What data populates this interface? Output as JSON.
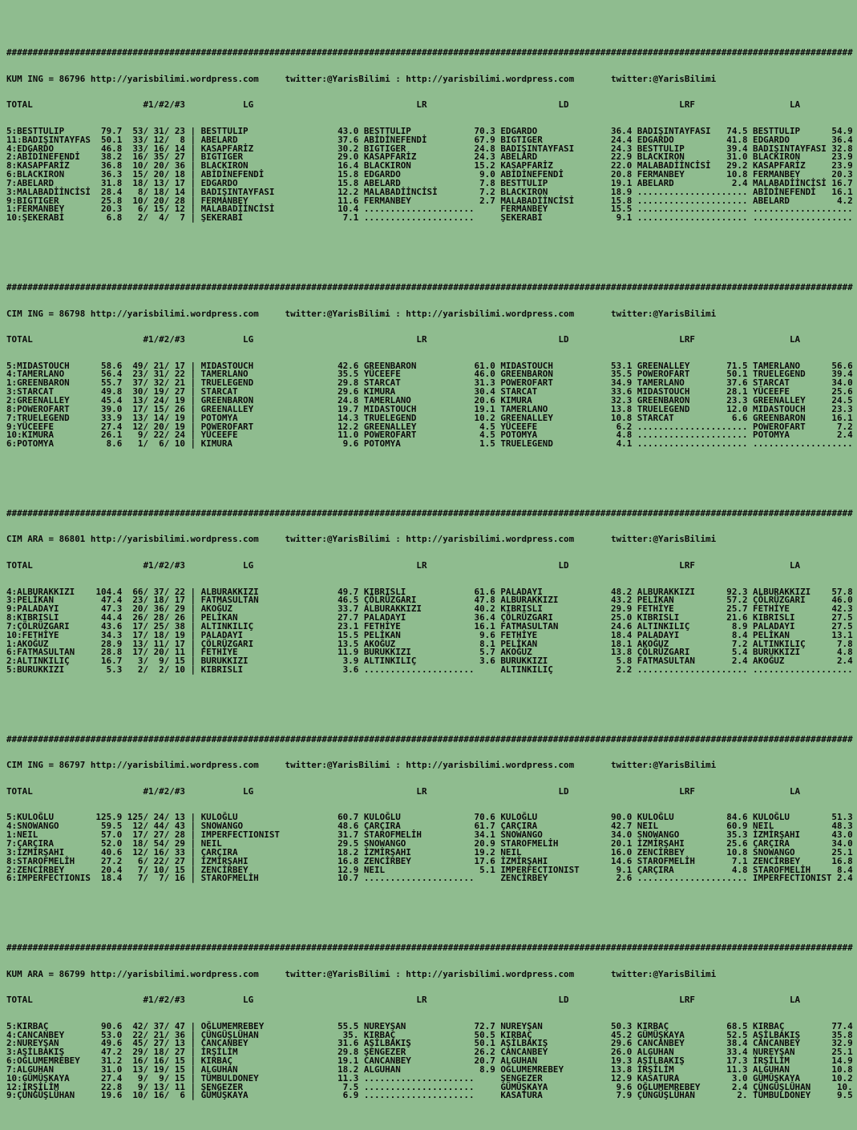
{
  "page": {
    "background_color": "#8fbc8f",
    "text_color": "#0a0a0a",
    "site_url": "http://yarisbilimi.wordpress.com",
    "twitter_handle": "twitter:@YarisBilimi"
  },
  "hash_line": "#################################################################################################################################################################",
  "columns_line": "TOTAL                     #1/#2/#3           LG                               LR                         LD                     LRF                  LA",
  "column_headers": [
    "TOTAL",
    "#1/#2/#3",
    "LG",
    "LR",
    "LD",
    "LRF",
    "LA"
  ],
  "sections": [
    {
      "name": "KUM ING",
      "code": "86796",
      "title_line": "KUM ING = 86796 http://yarisbilimi.wordpress.com     twitter:@YarisBilimi : http://yarisbilimi.wordpress.com       twitter:@YarisBilimi",
      "rows": [
        "5:BESTTULIP       79.7  53/ 31/ 23 | BESTTULIP                 43.0 BESTTULIP            70.3 EDGARDO              36.4 BADIŞINTAYFASI   74.5 BESTTULIP      54.9",
        "11:BADIŞINTAYFAS  50.1  33/ 12/  8 | ABELARD                   37.6 ABİDİNEFENDİ         67.9 BIGTIGER             24.4 EDGARDO          41.8 EDGARDO        36.4",
        "4:EDGARDO         46.8  33/ 16/ 14 | KASAPFARİZ                30.2 BIGTIGER             24.8 BADIŞINTAYFASI       24.3 BESTTULIP        39.4 BADIŞINTAYFASI 32.8",
        "2:ABİDİNEFENDİ    38.2  16/ 35/ 27 | BIGTIGER                  29.0 KASAPFARİZ           24.3 ABELARD              22.9 BLACKIRON        31.0 BLACKIRON      23.9",
        "8:KASAPFARİZ      36.8  10/ 20/ 36 | BLACKIRON                 16.4 BLACKIRON            15.2 KASAPFARİZ           22.0 MALABADİİNCİSİ   29.2 KASAPFARİZ     23.9",
        "6:BLACKIRON       36.3  15/ 20/ 18 | ABİDİNEFENDİ              15.8 EDGARDO               9.0 ABİDİNEFENDİ         20.8 FERMANBEY        10.8 FERMANBEY      20.3",
        "7:ABELARD         31.8  18/ 13/ 17 | EDGARDO                   15.8 ABELARD               7.8 BESTTULIP            19.1 ABELARD           2.4 MALABADİİNCİSİ 16.7",
        "3:MALABADİİNCİSİ  28.4   8/ 18/ 14 | BADIŞINTAYFASI            12.2 MALABADİİNCİSİ        7.2 BLACKIRON            18.9 ..................... ABİDİNEFENDİ   16.1",
        "9:BIGTIGER        25.8  10/ 20/ 28 | FERMANBEY                 11.6 FERMANBEY             2.7 MALABADİİNCİSİ       15.8 ..................... ABELARD         4.2",
        "1:FERMANBEY       20.3   6/ 15/ 12 | MALABADİİNCİSİ            10.4 .....................     FERMANBEY            15.5 ..................... ...................",
        "10:ŞEKERABİ        6.8   2/  4/  7 | ŞEKERABİ                   7.1 .....................     ŞEKERABİ              9.1 ..................... ..................."
      ]
    },
    {
      "name": "CIM ING",
      "code": "86798",
      "title_line": "CIM ING = 86798 http://yarisbilimi.wordpress.com     twitter:@YarisBilimi : http://yarisbilimi.wordpress.com       twitter:@YarisBilimi",
      "rows": [
        "5:MIDASTOUCH      58.6  49/ 21/ 17 | MIDASTOUCH                42.6 GREENBARON           61.0 MIDASTOUCH           53.1 GREENALLEY       71.5 TAMERLANO      56.6",
        "4:TAMERLANO       56.4  23/ 31/ 22 | TAMERLANO                 35.5 YÜCEEFE              46.0 GREENBARON           35.5 POWEROFART       50.1 TRUELEGEND     39.4",
        "1:GREENBARON      55.7  37/ 32/ 21 | TRUELEGEND                29.8 STARCAT              31.3 POWEROFART           34.9 TAMERLANO        37.6 STARCAT        34.0",
        "3:STARCAT         49.8  30/ 19/ 27 | STARCAT                   29.6 KIMURA               30.4 STARCAT              33.6 MIDASTOUCH       28.1 YÜCEEFE        25.6",
        "2:GREENALLEY      45.4  13/ 24/ 19 | GREENBARON                24.8 TAMERLANO            20.6 KIMURA               32.3 GREENBARON       23.3 GREENALLEY     24.5",
        "8:POWEROFART      39.0  17/ 15/ 26 | GREENALLEY                19.7 MIDASTOUCH           19.1 TAMERLANO            13.8 TRUELEGEND       12.0 MIDASTOUCH     23.3",
        "7:TRUELEGEND      33.9  13/ 14/ 19 | POTOMYA                   14.3 TRUELEGEND           10.2 GREENALLEY           10.8 STARCAT           6.6 GREENBARON     16.1",
        "9:YÜCEEFE         27.4  12/ 20/ 19 | POWEROFART                12.2 GREENALLEY            4.5 YÜCEEFE               6.2 ..................... POWEROFART      7.2",
        "10:KIMURA         26.1   9/ 22/ 24 | YÜCEEFE                   11.0 POWEROFART            4.5 POTOMYA               4.8 ..................... POTOMYA         2.4",
        "6:POTOMYA          8.6   1/  6/ 10 | KIMURA                     9.6 POTOMYA               1.5 TRUELEGEND            4.1 ..................... ..................."
      ]
    },
    {
      "name": "CIM ARA",
      "code": "86801",
      "title_line": "CIM ARA = 86801 http://yarisbilimi.wordpress.com     twitter:@YarisBilimi : http://yarisbilimi.wordpress.com       twitter:@YarisBilimi",
      "rows": [
        "4:ALBURAKKIZI    104.4  66/ 37/ 22 | ALBURAKKIZI               49.7 KIBRISLI             61.6 PALADAYI             48.2 ALBURAKKIZI      92.3 ALBURAKKIZI    57.8",
        "3:PELİKAN         47.4  23/ 18/ 17 | FATMASULTAN               46.5 ÇÖLRÜZGARI           47.8 ALBURAKKIZI          43.2 PELİKAN          57.2 ÇÖLRÜZGARI     46.0",
        "9:PALADAYI        47.3  20/ 36/ 29 | AKOĞUZ                    33.7 ALBURAKKIZI          40.2 KIBRISLI             29.9 FETHİYE          25.7 FETHİYE        42.3",
        "8:KIBRISLI        44.4  26/ 28/ 26 | PELİKAN                   27.7 PALADAYI             36.4 ÇÖLRÜZGARI           25.0 KIBRISLI         21.6 KIBRISLI       27.5",
        "7:ÇÖLRÜZGARI      43.6  17/ 25/ 38 | ALTINKILIÇ                23.1 FETHİYE              16.1 FATMASULTAN          24.6 ALTINKILIÇ        8.9 PALADAYI       27.5",
        "10:FETHİYE        34.3  17/ 18/ 19 | PALADAYI                  15.5 PELİKAN               9.6 FETHİYE              18.4 PALADAYI          8.4 PELİKAN        13.1",
        "1:AKOĞUZ          28.9  13/ 11/ 17 | ÇÖLRÜZGARI                13.5 AKOĞUZ                8.1 PELİKAN              18.1 AKOĞUZ            7.2 ALTINKILIÇ      7.8",
        "6:FATMASULTAN     28.8  17/ 20/ 11 | FETHİYE                   11.9 BURUKKIZI             5.7 AKOĞUZ               13.8 ÇÖLRÜZGARI        5.4 BURUKKIZI       4.8",
        "2:ALTINKILIÇ      16.7   3/  9/ 15 | BURUKKIZI                  3.9 ALTINKILIÇ            3.6 BURUKKIZI             5.8 FATMASULTAN       2.4 AKOĞUZ          2.4",
        "5:BURUKKIZI        5.3   2/  2/ 10 | KIBRISLI                   3.6 .....................     ALTINKILIÇ            2.2 ..................... ..................."
      ]
    },
    {
      "name": "CIM ING",
      "code": "86797",
      "title_line": "CIM ING = 86797 http://yarisbilimi.wordpress.com     twitter:@YarisBilimi : http://yarisbilimi.wordpress.com       twitter:@YarisBilimi",
      "rows": [
        "5:KULOĞLU        125.9 125/ 24/ 13 | KULOĞLU                   60.7 KULOĞLU              70.6 KULOĞLU              90.0 KULOĞLU          84.6 KULOĞLU        51.3",
        "4:SNOWANGO        59.5  12/ 44/ 43 | SNOWANGO                  48.6 ÇARÇIRA              61.7 ÇARÇIRA              42.7 NEIL             60.9 NEIL           48.3",
        "1:NEIL            57.0  17/ 27/ 28 | IMPERFECTIONIST           31.7 STAROFMELİH          34.1 SNOWANGO             34.0 SNOWANGO         35.3 İZMİRŞAHI      43.0",
        "7:ÇARÇIRA         52.0  18/ 54/ 29 | NEIL                      29.5 SNOWANGO             20.9 STAROFMELİH          20.1 İZMİRŞAHI        25.6 ÇARÇIRA        34.0",
        "3:İZMİRŞAHI       40.6  12/ 16/ 33 | ÇARÇIRA                   18.2 İZMİRŞAHI            19.2 NEIL                 16.0 ZENCİRBEY        10.8 SNOWANGO       25.1",
        "8:STAROFMELİH     27.2   6/ 22/ 27 | İZMİRŞAHI                 16.8 ZENCİRBEY            17.6 İZMİRŞAHI            14.6 STAROFMELİH       7.1 ZENCİRBEY      16.8",
        "2:ZENCİRBEY       20.4   7/ 10/ 15 | ZENCİRBEY                 12.9 NEIL                  5.1 IMPERFECTIONIST       9.1 ÇARÇIRA           4.8 STAROFMELİH     8.4",
        "6:IMPERFECTIONIS  18.4   7/  7/ 16 | STAROFMELİH               10.7 .....................     ZENCİRBEY             2.6 ..................... IMPERFECTIONIST 2.4"
      ]
    },
    {
      "name": "KUM ARA",
      "code": "86799",
      "title_line": "KUM ARA = 86799 http://yarisbilimi.wordpress.com     twitter:@YarisBilimi : http://yarisbilimi.wordpress.com       twitter:@YarisBilimi",
      "rows": [
        "5:KIRBAÇ          90.6  42/ 37/ 47 | OĞLUMEMREBEY              55.5 NUREYŞAN             72.7 NUREYŞAN             50.3 KIRBAÇ           68.5 KIRBAÇ         77.4",
        "4:CANCANBEY       53.0  22/ 21/ 36 | ÇÜNGÜŞLÜHAN                35. KIRBAÇ               50.5 KIRBAÇ               45.2 GÜMÜŞKAYA        52.5 AŞİLBAKIŞ      35.8",
        "2:NUREYŞAN        49.6  45/ 27/ 13 | CANCANBEY                 31.6 AŞİLBAKIŞ            50.1 AŞİLBAKIŞ            29.6 CANCANBEY        38.4 CANCANBEY      32.9",
        "3:AŞİLBAKIŞ       47.2  29/ 18/ 27 | İRŞİLİM                   29.8 ŞENGEZER             26.2 CANCANBEY            26.0 ALGUHAN          33.4 NUREYŞAN       25.1",
        "6:OĞLUMEMREBEY    31.2  16/ 16/ 15 | KIRBAÇ                    19.1 CANCANBEY            20.7 ALGUHAN              19.3 AŞİLBAKIŞ        17.3 İRŞİLİM        14.9",
        "7:ALGUHAN         31.0  13/ 19/ 15 | ALGUHAN                   18.2 ALGUHAN               8.9 OĞLUMEMREBEY         13.8 İRŞİLİM          11.3 ALGUHAN        10.8",
        "10:GÜMÜŞKAYA      27.4   9/  9/ 15 | TÜMBULDONEY               11.3 .....................     ŞENGEZER             12.9 KASATURA          3.0 GÜMÜŞKAYA      10.2",
        "12:İRŞİLİM        22.8   9/ 13/ 11 | ŞENGEZER                   7.5 .....................     GÜMÜŞKAYA             9.6 OĞLUMEMREBEY      2.4 ÇÜNGÜŞLÜHAN     10.",
        "9:ÇÜNGÜŞLÜHAN     19.6  10/ 16/  6 | GÜMÜŞKAYA                  6.9 .....................     KASATURA              7.9 ÇÜNGÜŞLÜHAN        2. TÜMBULDONEY     9.5"
      ]
    }
  ]
}
